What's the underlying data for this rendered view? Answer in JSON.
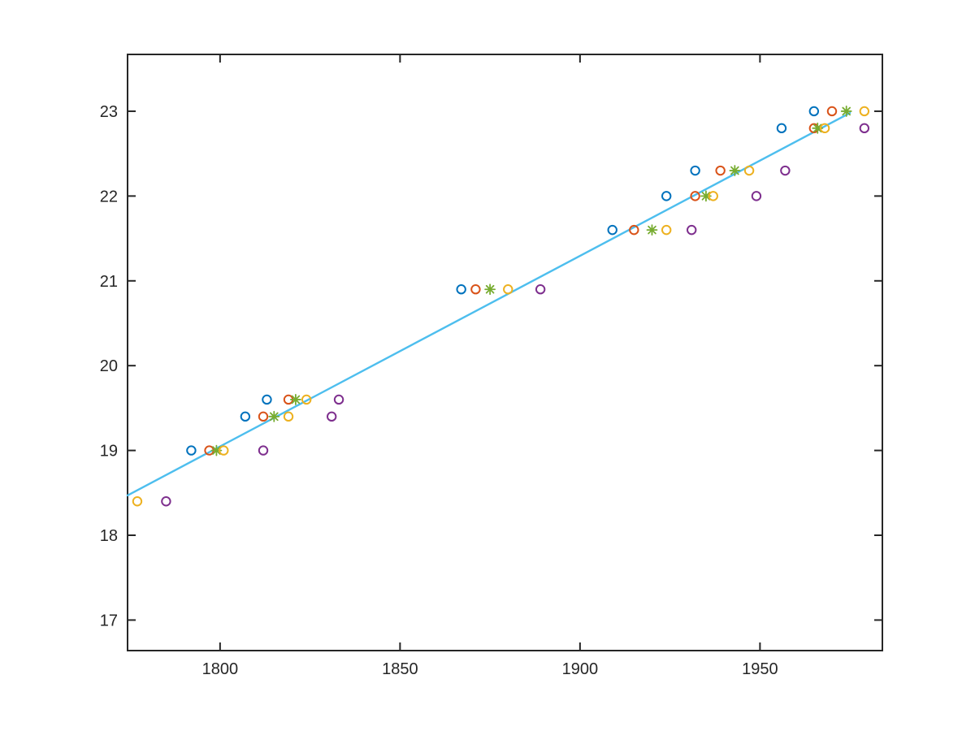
{
  "figure": {
    "background": "#ffffff",
    "title": ""
  },
  "chart_data": {
    "type": "scatter",
    "title": "",
    "xlabel": "",
    "ylabel": "",
    "grid": false,
    "legend": "none",
    "xlim": [
      1774.3,
      1984.0
    ],
    "ylim": [
      16.64,
      23.67
    ],
    "x_ticks": [
      1800,
      1850,
      1900,
      1950
    ],
    "y_ticks": [
      17,
      18,
      19,
      20,
      21,
      22,
      23
    ],
    "axis_color": "#262626",
    "tick_direction": "in",
    "box": true,
    "series": [
      {
        "name": "series-1",
        "marker": "circle",
        "color": "#0072BD",
        "points": [
          [
            1792,
            19.0
          ],
          [
            1807,
            19.4
          ],
          [
            1813,
            19.6
          ],
          [
            1867,
            20.9
          ],
          [
            1909,
            21.6
          ],
          [
            1924,
            22.0
          ],
          [
            1932,
            22.3
          ],
          [
            1956,
            22.8
          ],
          [
            1965,
            23.0
          ]
        ]
      },
      {
        "name": "series-2",
        "marker": "circle",
        "color": "#D95319",
        "points": [
          [
            1797,
            19.0
          ],
          [
            1812,
            19.4
          ],
          [
            1819,
            19.6
          ],
          [
            1871,
            20.9
          ],
          [
            1915,
            21.6
          ],
          [
            1932,
            22.0
          ],
          [
            1939,
            22.3
          ],
          [
            1965,
            22.8
          ],
          [
            1970,
            23.0
          ]
        ]
      },
      {
        "name": "series-3",
        "marker": "asterisk",
        "color": "#77AC30",
        "points": [
          [
            1799,
            19.0
          ],
          [
            1815,
            19.4
          ],
          [
            1821,
            19.6
          ],
          [
            1875,
            20.9
          ],
          [
            1920,
            21.6
          ],
          [
            1935,
            22.0
          ],
          [
            1943,
            22.3
          ],
          [
            1966,
            22.8
          ],
          [
            1974,
            23.0
          ]
        ]
      },
      {
        "name": "series-4",
        "marker": "circle",
        "color": "#EDB120",
        "points": [
          [
            1777,
            18.4
          ],
          [
            1801,
            19.0
          ],
          [
            1819,
            19.4
          ],
          [
            1824,
            19.6
          ],
          [
            1880,
            20.9
          ],
          [
            1924,
            21.6
          ],
          [
            1937,
            22.0
          ],
          [
            1947,
            22.3
          ],
          [
            1968,
            22.8
          ],
          [
            1979,
            23.0
          ]
        ]
      },
      {
        "name": "series-5",
        "marker": "circle",
        "color": "#7E2F8E",
        "points": [
          [
            1785,
            18.4
          ],
          [
            1812,
            19.0
          ],
          [
            1831,
            19.4
          ],
          [
            1833,
            19.6
          ],
          [
            1889,
            20.9
          ],
          [
            1931,
            21.6
          ],
          [
            1949,
            22.0
          ],
          [
            1957,
            22.3
          ],
          [
            1979,
            22.8
          ]
        ]
      }
    ],
    "fit_line": {
      "name": "linear-fit-line",
      "color": "#4DBEEE",
      "from": [
        1774.3,
        18.47
      ],
      "to": [
        1975.0,
        22.98
      ]
    }
  }
}
